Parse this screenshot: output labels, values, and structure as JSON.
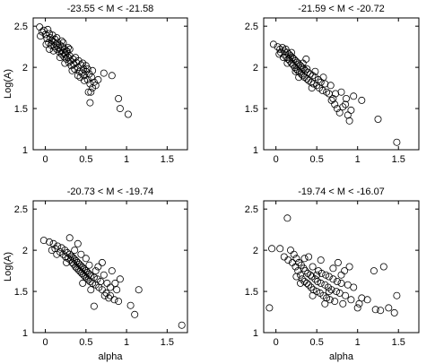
{
  "chart_data": [
    {
      "type": "scatter",
      "title": "-23.55 < M < -21.58",
      "xlabel": "",
      "ylabel": "Log(A)",
      "xlim": [
        -0.15,
        1.75
      ],
      "ylim": [
        1.0,
        2.6
      ],
      "xticks": [
        0,
        0.5,
        1,
        1.5
      ],
      "yticks": [
        1,
        1.5,
        2,
        2.5
      ],
      "xtick_labels": [
        "0",
        "0.5",
        "1",
        "1.5"
      ],
      "ytick_labels": [
        "1",
        "1.5",
        "2",
        "2.5"
      ],
      "grid": false,
      "points": [
        [
          -0.07,
          2.49
        ],
        [
          -0.04,
          2.43
        ],
        [
          -0.06,
          2.38
        ],
        [
          -0.02,
          2.45
        ],
        [
          0.0,
          2.4
        ],
        [
          0.02,
          2.35
        ],
        [
          0.03,
          2.46
        ],
        [
          0.05,
          2.41
        ],
        [
          0.04,
          2.3
        ],
        [
          0.06,
          2.36
        ],
        [
          0.08,
          2.33
        ],
        [
          0.07,
          2.27
        ],
        [
          0.09,
          2.39
        ],
        [
          0.1,
          2.31
        ],
        [
          0.11,
          2.25
        ],
        [
          0.12,
          2.34
        ],
        [
          0.13,
          2.28
        ],
        [
          0.14,
          2.22
        ],
        [
          0.15,
          2.3
        ],
        [
          0.16,
          2.24
        ],
        [
          0.17,
          2.19
        ],
        [
          0.18,
          2.27
        ],
        [
          0.19,
          2.21
        ],
        [
          0.2,
          2.16
        ],
        [
          0.21,
          2.25
        ],
        [
          0.22,
          2.18
        ],
        [
          0.23,
          2.13
        ],
        [
          0.24,
          2.22
        ],
        [
          0.25,
          2.15
        ],
        [
          0.26,
          2.1
        ],
        [
          0.27,
          2.19
        ],
        [
          0.28,
          2.12
        ],
        [
          0.29,
          2.06
        ],
        [
          0.3,
          2.14
        ],
        [
          0.31,
          2.08
        ],
        [
          0.32,
          2.02
        ],
        [
          0.34,
          2.1
        ],
        [
          0.35,
          2.04
        ],
        [
          0.36,
          1.98
        ],
        [
          0.38,
          2.06
        ],
        [
          0.4,
          2.0
        ],
        [
          0.42,
          1.95
        ],
        [
          0.44,
          2.03
        ],
        [
          0.45,
          1.93
        ],
        [
          0.47,
          1.98
        ],
        [
          0.48,
          1.9
        ],
        [
          0.5,
          1.95
        ],
        [
          0.52,
          1.85
        ],
        [
          0.54,
          1.92
        ],
        [
          0.55,
          1.8
        ],
        [
          0.57,
          1.88
        ],
        [
          0.58,
          1.75
        ],
        [
          0.6,
          1.82
        ],
        [
          0.53,
          1.7
        ],
        [
          0.56,
          1.7
        ],
        [
          0.55,
          1.57
        ],
        [
          0.62,
          1.78
        ],
        [
          0.65,
          1.85
        ],
        [
          0.72,
          1.93
        ],
        [
          0.82,
          1.9
        ],
        [
          0.9,
          1.62
        ],
        [
          0.92,
          1.5
        ],
        [
          1.02,
          1.43
        ],
        [
          0.1,
          2.2
        ],
        [
          0.14,
          2.36
        ],
        [
          0.18,
          2.12
        ],
        [
          0.22,
          2.3
        ],
        [
          0.26,
          2.2
        ],
        [
          0.3,
          2.22
        ],
        [
          0.33,
          1.96
        ],
        [
          0.37,
          2.12
        ],
        [
          0.41,
          2.08
        ],
        [
          0.43,
          1.88
        ],
        [
          0.46,
          2.05
        ],
        [
          0.5,
          2.02
        ],
        [
          0.01,
          2.28
        ],
        [
          0.05,
          2.22
        ],
        [
          0.2,
          2.32
        ],
        [
          0.24,
          2.05
        ],
        [
          0.28,
          2.24
        ],
        [
          0.4,
          1.9
        ],
        [
          0.52,
          1.98
        ],
        [
          0.58,
          1.96
        ],
        [
          0.48,
          1.84
        ]
      ]
    },
    {
      "type": "scatter",
      "title": "-21.59 < M < -20.72",
      "xlabel": "",
      "ylabel": "",
      "xlim": [
        -0.15,
        1.75
      ],
      "ylim": [
        1.0,
        2.6
      ],
      "xticks": [
        0,
        0.5,
        1,
        1.5
      ],
      "yticks": [
        1,
        1.5,
        2,
        2.5
      ],
      "xtick_labels": [
        "0",
        "0.5",
        "1",
        "1.5"
      ],
      "ytick_labels": [
        "1",
        "1.5",
        "2",
        "2.5"
      ],
      "grid": false,
      "points": [
        [
          -0.03,
          2.28
        ],
        [
          0.02,
          2.25
        ],
        [
          0.05,
          2.22
        ],
        [
          0.06,
          2.18
        ],
        [
          0.08,
          2.24
        ],
        [
          0.1,
          2.2
        ],
        [
          0.11,
          2.15
        ],
        [
          0.12,
          2.22
        ],
        [
          0.13,
          2.12
        ],
        [
          0.14,
          2.18
        ],
        [
          0.15,
          2.1
        ],
        [
          0.16,
          2.16
        ],
        [
          0.17,
          2.08
        ],
        [
          0.18,
          2.14
        ],
        [
          0.19,
          2.05
        ],
        [
          0.2,
          2.12
        ],
        [
          0.21,
          2.03
        ],
        [
          0.22,
          2.1
        ],
        [
          0.23,
          2.0
        ],
        [
          0.24,
          2.08
        ],
        [
          0.25,
          1.98
        ],
        [
          0.26,
          2.06
        ],
        [
          0.27,
          1.96
        ],
        [
          0.28,
          2.04
        ],
        [
          0.29,
          1.94
        ],
        [
          0.3,
          2.02
        ],
        [
          0.31,
          1.92
        ],
        [
          0.32,
          2.0
        ],
        [
          0.33,
          1.9
        ],
        [
          0.34,
          1.98
        ],
        [
          0.35,
          1.88
        ],
        [
          0.36,
          1.96
        ],
        [
          0.37,
          2.1
        ],
        [
          0.38,
          1.86
        ],
        [
          0.39,
          1.94
        ],
        [
          0.4,
          1.84
        ],
        [
          0.42,
          1.92
        ],
        [
          0.43,
          1.82
        ],
        [
          0.45,
          1.9
        ],
        [
          0.46,
          1.8
        ],
        [
          0.48,
          1.88
        ],
        [
          0.5,
          1.78
        ],
        [
          0.52,
          1.85
        ],
        [
          0.53,
          1.75
        ],
        [
          0.55,
          1.82
        ],
        [
          0.57,
          1.72
        ],
        [
          0.6,
          1.8
        ],
        [
          0.62,
          1.7
        ],
        [
          0.65,
          1.68
        ],
        [
          0.67,
          1.78
        ],
        [
          0.7,
          1.62
        ],
        [
          0.72,
          1.55
        ],
        [
          0.75,
          1.5
        ],
        [
          0.78,
          1.45
        ],
        [
          0.8,
          1.7
        ],
        [
          0.85,
          1.55
        ],
        [
          0.88,
          1.42
        ],
        [
          0.9,
          1.35
        ],
        [
          0.92,
          1.48
        ],
        [
          0.95,
          1.65
        ],
        [
          1.05,
          1.6
        ],
        [
          1.25,
          1.37
        ],
        [
          1.48,
          1.09
        ],
        [
          0.04,
          2.16
        ],
        [
          0.09,
          2.12
        ],
        [
          0.14,
          2.05
        ],
        [
          0.19,
          2.18
        ],
        [
          0.24,
          1.95
        ],
        [
          0.28,
          1.88
        ],
        [
          0.33,
          2.05
        ],
        [
          0.38,
          1.98
        ],
        [
          0.44,
          1.75
        ],
        [
          0.48,
          1.95
        ],
        [
          0.58,
          1.88
        ],
        [
          0.68,
          1.6
        ],
        [
          0.73,
          1.68
        ],
        [
          0.82,
          1.52
        ],
        [
          0.86,
          1.62
        ]
      ]
    },
    {
      "type": "scatter",
      "title": "-20.73 < M < -19.74",
      "xlabel": "alpha",
      "ylabel": "Log(A)",
      "xlim": [
        -0.15,
        1.75
      ],
      "ylim": [
        1.0,
        2.6
      ],
      "xticks": [
        0,
        0.5,
        1,
        1.5
      ],
      "yticks": [
        1,
        1.5,
        2,
        2.5
      ],
      "xtick_labels": [
        "0",
        "0.5",
        "1",
        "1.5"
      ],
      "ytick_labels": [
        "1",
        "1.5",
        "2",
        "2.5"
      ],
      "grid": false,
      "points": [
        [
          -0.02,
          2.12
        ],
        [
          0.05,
          2.1
        ],
        [
          0.1,
          2.08
        ],
        [
          0.12,
          2.02
        ],
        [
          0.15,
          2.05
        ],
        [
          0.18,
          1.98
        ],
        [
          0.2,
          2.03
        ],
        [
          0.22,
          1.95
        ],
        [
          0.24,
          2.0
        ],
        [
          0.25,
          1.92
        ],
        [
          0.27,
          1.97
        ],
        [
          0.28,
          1.9
        ],
        [
          0.3,
          1.95
        ],
        [
          0.31,
          1.88
        ],
        [
          0.32,
          1.93
        ],
        [
          0.33,
          1.85
        ],
        [
          0.34,
          1.91
        ],
        [
          0.35,
          1.83
        ],
        [
          0.36,
          1.89
        ],
        [
          0.37,
          1.8
        ],
        [
          0.38,
          1.87
        ],
        [
          0.39,
          1.78
        ],
        [
          0.4,
          1.85
        ],
        [
          0.41,
          1.76
        ],
        [
          0.42,
          1.83
        ],
        [
          0.43,
          1.74
        ],
        [
          0.44,
          1.81
        ],
        [
          0.45,
          1.72
        ],
        [
          0.46,
          1.79
        ],
        [
          0.47,
          1.7
        ],
        [
          0.48,
          1.77
        ],
        [
          0.49,
          1.68
        ],
        [
          0.5,
          1.75
        ],
        [
          0.51,
          1.66
        ],
        [
          0.52,
          1.73
        ],
        [
          0.53,
          1.64
        ],
        [
          0.54,
          1.71
        ],
        [
          0.55,
          1.62
        ],
        [
          0.56,
          1.69
        ],
        [
          0.58,
          1.6
        ],
        [
          0.6,
          1.67
        ],
        [
          0.62,
          1.58
        ],
        [
          0.64,
          1.65
        ],
        [
          0.65,
          1.8
        ],
        [
          0.66,
          1.55
        ],
        [
          0.68,
          1.62
        ],
        [
          0.7,
          1.52
        ],
        [
          0.72,
          1.7
        ],
        [
          0.73,
          1.45
        ],
        [
          0.75,
          1.48
        ],
        [
          0.76,
          1.6
        ],
        [
          0.78,
          1.42
        ],
        [
          0.8,
          1.55
        ],
        [
          0.82,
          1.75
        ],
        [
          0.85,
          1.4
        ],
        [
          0.88,
          1.52
        ],
        [
          0.9,
          1.38
        ],
        [
          0.92,
          1.65
        ],
        [
          0.6,
          1.32
        ],
        [
          0.3,
          2.15
        ],
        [
          0.4,
          2.08
        ],
        [
          0.5,
          1.9
        ],
        [
          1.05,
          1.33
        ],
        [
          1.1,
          1.22
        ],
        [
          1.15,
          1.52
        ],
        [
          1.68,
          1.09
        ],
        [
          0.08,
          2.0
        ],
        [
          0.14,
          1.95
        ],
        [
          0.26,
          1.85
        ],
        [
          0.36,
          2.0
        ],
        [
          0.44,
          1.95
        ],
        [
          0.54,
          1.82
        ],
        [
          0.62,
          1.75
        ],
        [
          0.7,
          1.85
        ],
        [
          0.8,
          1.45
        ],
        [
          0.86,
          1.6
        ],
        [
          0.46,
          1.6
        ],
        [
          0.56,
          1.52
        ]
      ]
    },
    {
      "type": "scatter",
      "title": "-19.74 < M < -16.07",
      "xlabel": "alpha",
      "ylabel": "",
      "xlim": [
        -0.15,
        1.75
      ],
      "ylim": [
        1.0,
        2.6
      ],
      "xticks": [
        0,
        0.5,
        1,
        1.5
      ],
      "yticks": [
        1,
        1.5,
        2,
        2.5
      ],
      "xtick_labels": [
        "0",
        "0.5",
        "1",
        "1.5"
      ],
      "ytick_labels": [
        "1",
        "1.5",
        "2",
        "2.5"
      ],
      "grid": false,
      "points": [
        [
          -0.08,
          1.3
        ],
        [
          -0.05,
          2.02
        ],
        [
          0.05,
          2.02
        ],
        [
          0.1,
          1.92
        ],
        [
          0.14,
          2.39
        ],
        [
          0.15,
          1.88
        ],
        [
          0.18,
          2.0
        ],
        [
          0.2,
          1.85
        ],
        [
          0.22,
          1.95
        ],
        [
          0.24,
          1.8
        ],
        [
          0.25,
          1.9
        ],
        [
          0.27,
          1.75
        ],
        [
          0.28,
          1.85
        ],
        [
          0.3,
          1.7
        ],
        [
          0.31,
          1.82
        ],
        [
          0.32,
          1.65
        ],
        [
          0.34,
          1.78
        ],
        [
          0.35,
          1.62
        ],
        [
          0.36,
          1.75
        ],
        [
          0.38,
          1.6
        ],
        [
          0.39,
          1.72
        ],
        [
          0.4,
          1.58
        ],
        [
          0.42,
          1.7
        ],
        [
          0.43,
          1.55
        ],
        [
          0.44,
          1.68
        ],
        [
          0.45,
          1.8
        ],
        [
          0.46,
          1.52
        ],
        [
          0.48,
          1.65
        ],
        [
          0.5,
          1.5
        ],
        [
          0.51,
          1.62
        ],
        [
          0.52,
          1.75
        ],
        [
          0.54,
          1.48
        ],
        [
          0.55,
          1.6
        ],
        [
          0.56,
          1.72
        ],
        [
          0.58,
          1.45
        ],
        [
          0.6,
          1.58
        ],
        [
          0.61,
          1.7
        ],
        [
          0.62,
          1.42
        ],
        [
          0.64,
          1.55
        ],
        [
          0.65,
          1.68
        ],
        [
          0.66,
          1.4
        ],
        [
          0.68,
          1.52
        ],
        [
          0.7,
          1.65
        ],
        [
          0.72,
          1.38
        ],
        [
          0.74,
          1.5
        ],
        [
          0.75,
          1.62
        ],
        [
          0.76,
          1.85
        ],
        [
          0.78,
          1.48
        ],
        [
          0.8,
          1.6
        ],
        [
          0.82,
          1.35
        ],
        [
          0.84,
          1.75
        ],
        [
          0.85,
          1.45
        ],
        [
          0.88,
          1.58
        ],
        [
          0.9,
          1.8
        ],
        [
          0.92,
          1.4
        ],
        [
          0.95,
          1.55
        ],
        [
          1.0,
          1.3
        ],
        [
          1.02,
          1.35
        ],
        [
          1.05,
          1.42
        ],
        [
          1.12,
          1.4
        ],
        [
          1.2,
          1.75
        ],
        [
          1.22,
          1.28
        ],
        [
          1.28,
          1.27
        ],
        [
          1.32,
          1.8
        ],
        [
          1.38,
          1.3
        ],
        [
          1.45,
          1.24
        ],
        [
          1.48,
          1.45
        ],
        [
          0.4,
          1.92
        ],
        [
          0.55,
          1.88
        ],
        [
          0.7,
          1.78
        ],
        [
          0.3,
          1.6
        ],
        [
          0.45,
          1.45
        ],
        [
          0.6,
          1.35
        ],
        [
          0.35,
          1.9
        ],
        [
          0.5,
          1.7
        ],
        [
          0.65,
          1.5
        ],
        [
          0.8,
          1.7
        ],
        [
          0.25,
          1.68
        ]
      ]
    }
  ]
}
